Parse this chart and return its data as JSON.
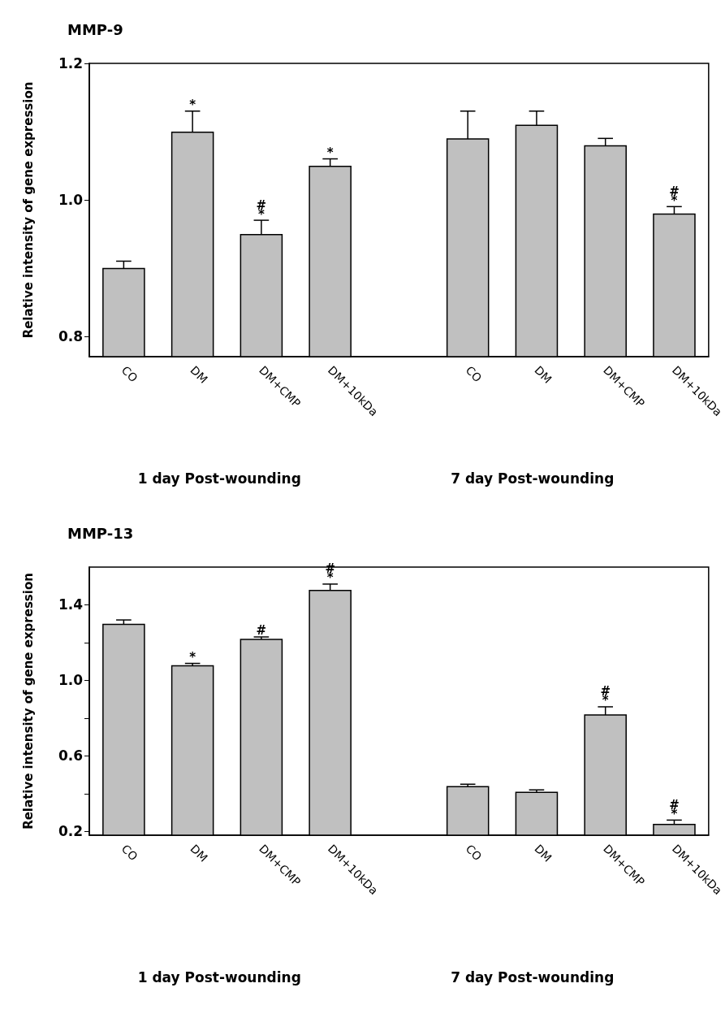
{
  "chart_data": [
    {
      "type": "bar",
      "title": "MMP-9",
      "ylabel": "Relative intensity of gene expression",
      "categories": [
        "CO",
        "DM",
        "DM+CMP",
        "DM+10kDa",
        null,
        "CO",
        "DM",
        "DM+CMP",
        "DM+10kDa"
      ],
      "values": [
        0.9,
        1.1,
        0.95,
        1.05,
        null,
        1.09,
        1.11,
        1.08,
        0.98
      ],
      "errors": [
        0.01,
        0.03,
        0.02,
        0.01,
        null,
        0.04,
        0.02,
        0.01,
        0.01
      ],
      "color": "#c0c0c0",
      "ylim": [
        0.77,
        1.2
      ],
      "yticks": [
        0.8,
        {
          "value": 1,
          "label": "1.0"
        },
        1.2
      ],
      "grid": false,
      "value_labels": [
        null,
        "*",
        "#\n*",
        "*",
        null,
        null,
        null,
        null,
        "#\n*"
      ],
      "annotations": [
        "1 day Post-wounding",
        "7 day Post-wounding"
      ]
    },
    {
      "type": "bar",
      "title": "MMP-13",
      "ylabel": "Relative intensity of gene expression",
      "categories": [
        "CO",
        "DM",
        "DM+CMP",
        "DM+10kDa",
        null,
        "CO",
        "DM",
        "DM+CMP",
        "DM+10kDa"
      ],
      "values": [
        1.3,
        1.08,
        1.22,
        1.48,
        null,
        0.44,
        0.41,
        0.82,
        0.24
      ],
      "errors": [
        0.02,
        0.01,
        0.01,
        0.03,
        null,
        0.01,
        0.01,
        0.04,
        0.02
      ],
      "color": "#c0c0c0",
      "ylim": [
        0.18,
        1.6
      ],
      "yticks": [
        0.2,
        {
          "value": 0.4,
          "label": null
        },
        0.6,
        {
          "value": 0.8,
          "label": null
        },
        {
          "value": 1,
          "label": "1.0"
        },
        {
          "value": 1.2,
          "label": null
        },
        1.4
      ],
      "grid": false,
      "value_labels": [
        null,
        "*",
        "#",
        "#\n*",
        null,
        null,
        null,
        "#\n*",
        "#\n*"
      ],
      "annotations": [
        "1 day Post-wounding",
        "7 day Post-wounding"
      ]
    }
  ]
}
